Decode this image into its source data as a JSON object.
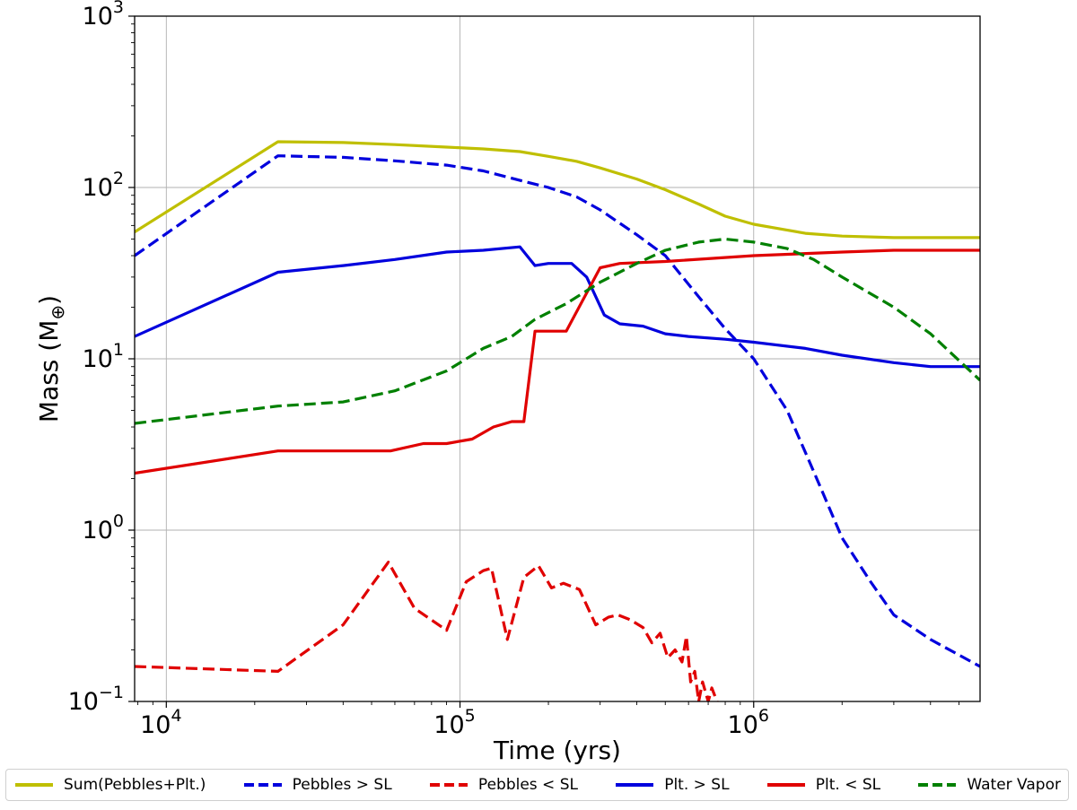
{
  "chart_data": {
    "type": "line",
    "xlabel": "Time  (yrs)",
    "ylabel": "Mass (M",
    "ylabel_sub": "⊕",
    "ylabel_close": ")",
    "xscale": "log",
    "yscale": "log",
    "xlim": [
      7800,
      5900000
    ],
    "ylim": [
      0.1,
      1000
    ],
    "grid": true,
    "legend_position": "bottom",
    "x_ticks": [
      {
        "value": 10000,
        "base": "10",
        "exp": "4"
      },
      {
        "value": 100000,
        "base": "10",
        "exp": "5"
      },
      {
        "value": 1000000,
        "base": "10",
        "exp": "6"
      }
    ],
    "y_ticks": [
      {
        "value": 0.1,
        "base": "10",
        "exp": "−1"
      },
      {
        "value": 1,
        "base": "10",
        "exp": "0"
      },
      {
        "value": 10,
        "base": "10",
        "exp": "1"
      },
      {
        "value": 100,
        "base": "10",
        "exp": "2"
      },
      {
        "value": 1000,
        "base": "10",
        "exp": "3"
      }
    ],
    "series": [
      {
        "name": "Sum(Pebbles+Plt.)",
        "color": "#bfbf00",
        "dash": "solid",
        "x": [
          7800,
          24000,
          40000,
          60000,
          90000,
          120000,
          160000,
          200000,
          250000,
          300000,
          400000,
          500000,
          650000,
          800000,
          1000000,
          1500000,
          2000000,
          3000000,
          5900000
        ],
        "y": [
          55,
          185,
          183,
          178,
          172,
          168,
          162,
          152,
          142,
          130,
          112,
          97,
          80,
          68,
          61,
          54,
          52,
          51,
          51
        ]
      },
      {
        "name": "Pebbles > SL",
        "color": "#0000dd",
        "dash": "dashed",
        "x": [
          7800,
          24000,
          40000,
          60000,
          90000,
          120000,
          160000,
          200000,
          250000,
          300000,
          400000,
          500000,
          650000,
          800000,
          1000000,
          1300000,
          1600000,
          2000000,
          2500000,
          3000000,
          4000000,
          5900000
        ],
        "y": [
          40,
          153,
          150,
          143,
          135,
          125,
          110,
          100,
          88,
          74,
          53,
          40,
          23,
          15,
          10,
          5,
          2.2,
          0.9,
          0.5,
          0.32,
          0.23,
          0.16
        ]
      },
      {
        "name": "Pebbles < SL",
        "color": "#e00000",
        "dash": "dashed",
        "x": [
          7800,
          24000,
          40000,
          57000,
          70000,
          90000,
          105000,
          120000,
          128000,
          145000,
          165000,
          185000,
          205000,
          225000,
          255000,
          290000,
          320000,
          345000,
          380000,
          420000,
          450000,
          480000,
          510000,
          540000,
          570000,
          590000,
          610000,
          630000,
          650000,
          670000,
          700000,
          720000,
          750000
        ],
        "y": [
          0.16,
          0.15,
          0.28,
          0.65,
          0.35,
          0.26,
          0.5,
          0.58,
          0.6,
          0.23,
          0.53,
          0.62,
          0.46,
          0.49,
          0.45,
          0.28,
          0.31,
          0.32,
          0.3,
          0.27,
          0.22,
          0.25,
          0.18,
          0.2,
          0.17,
          0.24,
          0.13,
          0.15,
          0.1,
          0.13,
          0.1,
          0.12,
          0.1
        ]
      },
      {
        "name": "Plt. > SL",
        "color": "#0000dd",
        "dash": "solid",
        "x": [
          7800,
          24000,
          40000,
          60000,
          90000,
          120000,
          160000,
          180000,
          200000,
          240000,
          270000,
          310000,
          350000,
          420000,
          500000,
          600000,
          800000,
          1000000,
          1500000,
          2000000,
          3000000,
          4000000,
          5900000
        ],
        "y": [
          13.5,
          32,
          35,
          38,
          42,
          43,
          45,
          35,
          36,
          36,
          30,
          18,
          16,
          15.5,
          14,
          13.5,
          13,
          12.5,
          11.5,
          10.5,
          9.5,
          9,
          9
        ]
      },
      {
        "name": "Plt. < SL",
        "color": "#e00000",
        "dash": "solid",
        "x": [
          7800,
          24000,
          40000,
          58000,
          75000,
          90000,
          110000,
          130000,
          150000,
          165000,
          180000,
          200000,
          230000,
          300000,
          350000,
          500000,
          1000000,
          2000000,
          3000000,
          5900000
        ],
        "y": [
          2.15,
          2.9,
          2.9,
          2.9,
          3.2,
          3.2,
          3.4,
          4,
          4.3,
          4.3,
          14.5,
          14.5,
          14.5,
          34,
          36,
          37,
          40,
          42,
          43,
          43
        ]
      },
      {
        "name": "Water Vapor",
        "color": "#008000",
        "dash": "dashed",
        "x": [
          7800,
          24000,
          40000,
          60000,
          90000,
          120000,
          150000,
          180000,
          230000,
          300000,
          400000,
          500000,
          650000,
          800000,
          1000000,
          1300000,
          1600000,
          2000000,
          3000000,
          4000000,
          5900000
        ],
        "y": [
          4.2,
          5.3,
          5.6,
          6.5,
          8.5,
          11.5,
          13.5,
          17,
          21,
          28,
          36,
          43,
          48,
          50,
          48,
          44,
          38,
          30,
          20,
          14,
          7.5
        ]
      }
    ]
  }
}
